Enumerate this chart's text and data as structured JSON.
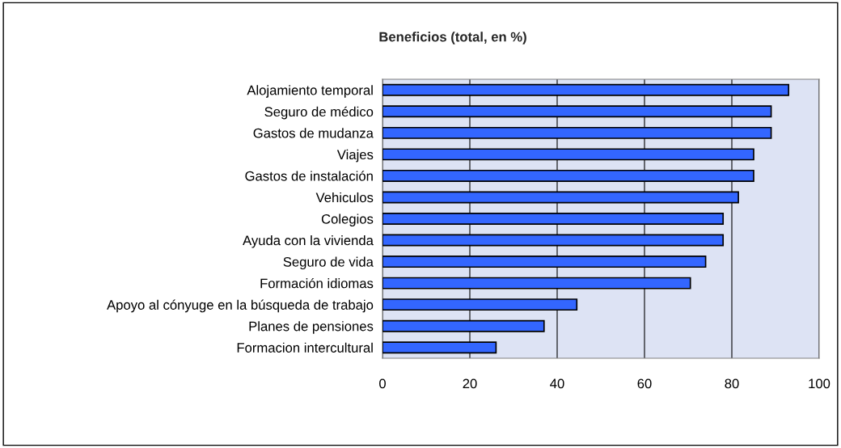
{
  "chart_data": {
    "type": "bar",
    "orientation": "horizontal",
    "title": "Beneficios (total, en %)",
    "categories": [
      "Alojamiento temporal",
      "Seguro de médico",
      "Gastos de mudanza",
      "Viajes",
      "Gastos de instalación",
      "Vehiculos",
      "Colegios",
      "Ayuda con la vivienda",
      "Seguro de vida",
      "Formación idiomas",
      "Apoyo al cónyuge en la búsqueda de trabajo",
      "Planes de pensiones",
      "Formacion intercultural"
    ],
    "values": [
      93,
      89,
      89,
      85,
      85,
      81.5,
      78,
      78,
      74,
      70.5,
      44.5,
      37,
      26
    ],
    "color": "#3366ff",
    "xlim": [
      0,
      100
    ],
    "xticks": [
      0,
      20,
      40,
      60,
      80,
      100
    ],
    "grid": "x",
    "legend": false
  }
}
